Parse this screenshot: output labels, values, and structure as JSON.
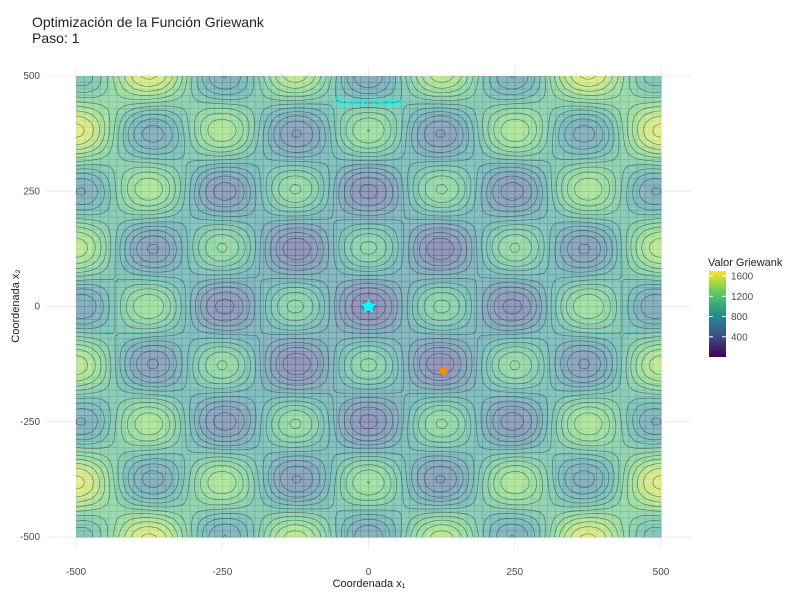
{
  "chart_data": {
    "type": "heatmap",
    "title": "Optimización de la Función Griewank",
    "subtitle": "Paso: 1",
    "xlabel": "Coordenada x₁",
    "ylabel": "Coordenada x₂",
    "xlim": [
      -500,
      500
    ],
    "ylim": [
      -500,
      500
    ],
    "x_ticks": [
      -500,
      -250,
      0,
      250,
      500
    ],
    "y_ticks": [
      -500,
      -250,
      0,
      250,
      500
    ],
    "x_tick_labels": [
      "-500",
      "-250",
      "0",
      "250",
      "500"
    ],
    "y_tick_labels": [
      "-500",
      "-250",
      "0",
      "250",
      "500"
    ],
    "grid": true,
    "function": "Griewank",
    "colorscale": "viridis",
    "legend": {
      "title": "Valor Griewank",
      "placement": "right",
      "min": 0,
      "max": 1700,
      "ticks": [
        400,
        800,
        1200,
        1600
      ],
      "tick_labels": [
        "400",
        "800",
        "1200",
        "1600"
      ]
    },
    "points": [
      {
        "name": "optimum",
        "x": 0,
        "y": 0,
        "color": "#00ffff",
        "shape": "star"
      },
      {
        "name": "current",
        "x": 128,
        "y": -140,
        "color": "#ff8c00",
        "shape": "circle"
      }
    ],
    "annotations": [
      {
        "text": "Óptimo Global",
        "x": 0,
        "y": 445,
        "color": "#00ffff"
      }
    ]
  }
}
